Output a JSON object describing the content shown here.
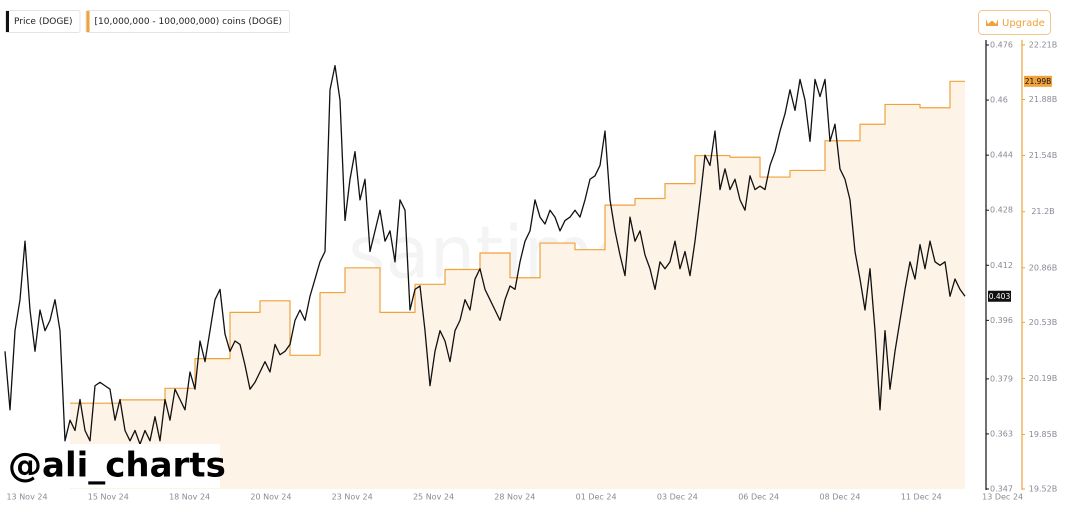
{
  "chart_data": {
    "type": "line",
    "watermark": "santiment",
    "author": "@ali_charts",
    "button": "Upgrade",
    "xticks": [
      "13 Nov 24",
      "15 Nov 24",
      "18 Nov 24",
      "20 Nov 24",
      "23 Nov 24",
      "25 Nov 24",
      "28 Nov 24",
      "01 Dec 24",
      "03 Dec 24",
      "06 Dec 24",
      "08 Dec 24",
      "11 Dec 24",
      "13 Dec 24"
    ],
    "ylim": [
      0.347,
      0.476
    ],
    "yticks": [
      0.476,
      0.46,
      0.444,
      0.428,
      0.412,
      0.396,
      0.379,
      0.363,
      0.347
    ],
    "y2lim": [
      19.52,
      22.21
    ],
    "y2ticks": [
      {
        "value": 22.21,
        "label": "22.21B"
      },
      {
        "value": 21.88,
        "label": "21.88B"
      },
      {
        "value": 21.54,
        "label": "21.54B"
      },
      {
        "value": 21.2,
        "label": "21.2B"
      },
      {
        "value": 20.86,
        "label": "20.86B"
      },
      {
        "value": 20.53,
        "label": "20.53B"
      },
      {
        "value": 20.19,
        "label": "20.19B"
      },
      {
        "value": 19.85,
        "label": "19.85B"
      },
      {
        "value": 19.52,
        "label": "19.52B"
      }
    ],
    "grid": false,
    "series": [
      {
        "name": "Price (DOGE)",
        "color": "#111111",
        "axis": "y",
        "line_style": "straight",
        "fill": false,
        "values": [
          0.387,
          0.37,
          0.393,
          0.402,
          0.419,
          0.399,
          0.387,
          0.399,
          0.393,
          0.396,
          0.402,
          0.393,
          0.361,
          0.367,
          0.364,
          0.373,
          0.364,
          0.361,
          0.377,
          0.378,
          0.377,
          0.376,
          0.367,
          0.373,
          0.364,
          0.361,
          0.364,
          0.36,
          0.364,
          0.361,
          0.368,
          0.361,
          0.373,
          0.367,
          0.376,
          0.373,
          0.37,
          0.381,
          0.376,
          0.39,
          0.384,
          0.393,
          0.402,
          0.405,
          0.392,
          0.387,
          0.39,
          0.389,
          0.383,
          0.376,
          0.378,
          0.381,
          0.384,
          0.381,
          0.389,
          0.386,
          0.387,
          0.389,
          0.396,
          0.399,
          0.396,
          0.403,
          0.408,
          0.413,
          0.416,
          0.463,
          0.47,
          0.46,
          0.425,
          0.437,
          0.445,
          0.431,
          0.437,
          0.416,
          0.422,
          0.428,
          0.419,
          0.422,
          0.413,
          0.431,
          0.428,
          0.399,
          0.405,
          0.406,
          0.393,
          0.377,
          0.387,
          0.393,
          0.39,
          0.384,
          0.393,
          0.396,
          0.402,
          0.399,
          0.408,
          0.411,
          0.405,
          0.402,
          0.399,
          0.396,
          0.402,
          0.406,
          0.405,
          0.413,
          0.419,
          0.422,
          0.431,
          0.426,
          0.424,
          0.428,
          0.426,
          0.422,
          0.425,
          0.426,
          0.428,
          0.426,
          0.431,
          0.437,
          0.438,
          0.441,
          0.451,
          0.431,
          0.422,
          0.415,
          0.409,
          0.426,
          0.419,
          0.422,
          0.415,
          0.411,
          0.405,
          0.413,
          0.411,
          0.413,
          0.419,
          0.411,
          0.416,
          0.409,
          0.419,
          0.431,
          0.444,
          0.441,
          0.451,
          0.434,
          0.44,
          0.434,
          0.437,
          0.431,
          0.428,
          0.438,
          0.434,
          0.435,
          0.434,
          0.441,
          0.445,
          0.451,
          0.456,
          0.463,
          0.457,
          0.466,
          0.46,
          0.448,
          0.466,
          0.461,
          0.466,
          0.448,
          0.453,
          0.44,
          0.437,
          0.431,
          0.416,
          0.408,
          0.399,
          0.411,
          0.393,
          0.37,
          0.393,
          0.376,
          0.387,
          0.396,
          0.405,
          0.413,
          0.408,
          0.418,
          0.411,
          0.419,
          0.413,
          0.412,
          0.413,
          0.403,
          0.408,
          0.405,
          0.403
        ]
      },
      {
        "name": "[10,000,000 - 100,000,000) coins (DOGE)",
        "color": "#f0a23c",
        "axis": "y2",
        "line_style": "step",
        "fill": true,
        "fill_color": "#fdf3e6",
        "values": [
          null,
          null,
          null,
          null,
          null,
          null,
          null,
          null,
          null,
          null,
          null,
          null,
          null,
          20.04,
          20.04,
          20.04,
          20.04,
          20.04,
          20.04,
          20.04,
          20.04,
          20.04,
          20.04,
          20.06,
          20.06,
          20.06,
          20.06,
          20.06,
          20.06,
          20.06,
          20.06,
          20.06,
          20.13,
          20.13,
          20.13,
          20.13,
          20.13,
          20.13,
          20.31,
          20.31,
          20.31,
          20.31,
          20.31,
          20.31,
          20.31,
          20.59,
          20.59,
          20.59,
          20.59,
          20.59,
          20.59,
          20.66,
          20.66,
          20.66,
          20.66,
          20.66,
          20.66,
          20.33,
          20.33,
          20.33,
          20.33,
          20.33,
          20.33,
          20.71,
          20.71,
          20.71,
          20.71,
          20.71,
          20.86,
          20.86,
          20.86,
          20.86,
          20.86,
          20.86,
          20.86,
          20.59,
          20.59,
          20.59,
          20.59,
          20.59,
          20.59,
          20.59,
          20.76,
          20.76,
          20.76,
          20.76,
          20.76,
          20.76,
          20.85,
          20.85,
          20.85,
          20.85,
          20.85,
          20.85,
          20.85,
          20.95,
          20.95,
          20.95,
          20.95,
          20.95,
          20.95,
          20.8,
          20.8,
          20.8,
          20.8,
          20.8,
          20.8,
          21.01,
          21.01,
          21.01,
          21.01,
          21.01,
          21.01,
          21.01,
          20.97,
          20.97,
          20.97,
          20.97,
          20.97,
          20.97,
          21.24,
          21.24,
          21.24,
          21.24,
          21.24,
          21.24,
          21.28,
          21.28,
          21.28,
          21.28,
          21.28,
          21.28,
          21.37,
          21.37,
          21.37,
          21.37,
          21.37,
          21.37,
          21.54,
          21.54,
          21.54,
          21.54,
          21.54,
          21.54,
          21.54,
          21.53,
          21.53,
          21.53,
          21.53,
          21.53,
          21.53,
          21.41,
          21.41,
          21.41,
          21.41,
          21.41,
          21.41,
          21.45,
          21.45,
          21.45,
          21.45,
          21.45,
          21.45,
          21.45,
          21.63,
          21.63,
          21.63,
          21.63,
          21.63,
          21.63,
          21.63,
          21.73,
          21.73,
          21.73,
          21.73,
          21.73,
          21.85,
          21.85,
          21.85,
          21.85,
          21.85,
          21.85,
          21.85,
          21.83,
          21.83,
          21.83,
          21.83,
          21.83,
          21.83,
          21.99,
          21.99,
          21.99,
          21.99
        ],
        "value_labels": [
          null,
          null,
          null,
          null,
          null,
          null,
          null,
          null,
          null,
          null,
          null,
          null,
          null,
          null,
          null,
          null,
          null,
          null,
          null,
          null,
          null,
          null,
          null,
          null,
          null,
          null,
          null,
          null,
          null,
          null,
          null,
          null,
          null,
          null,
          null,
          null,
          null,
          null,
          null,
          null,
          null,
          null,
          null,
          null,
          null,
          null,
          null,
          null,
          null,
          null,
          null,
          null,
          null,
          null,
          null,
          null,
          null,
          null,
          null,
          null,
          null,
          null,
          null,
          null,
          null,
          null,
          null,
          null,
          null,
          null,
          null,
          null,
          null,
          null,
          null,
          null,
          null,
          null,
          null,
          null,
          null,
          null,
          null,
          null,
          null,
          null,
          null,
          null,
          null,
          null,
          null,
          null,
          null,
          null,
          null,
          null,
          null,
          null,
          null,
          null,
          null,
          null,
          null,
          null,
          null,
          null,
          null,
          null,
          null,
          null,
          null,
          null,
          null,
          null,
          null,
          null,
          null,
          null,
          null,
          null,
          null,
          null,
          null,
          null,
          null,
          null,
          null,
          null,
          null,
          null,
          null,
          null,
          null,
          null,
          null,
          null,
          null,
          null,
          null,
          null,
          null,
          null,
          null,
          null,
          null,
          null,
          null,
          null,
          null,
          null,
          null,
          null,
          null,
          null,
          null,
          null,
          null,
          null,
          null,
          null,
          null,
          null,
          null,
          null,
          null,
          null,
          null,
          null,
          null,
          null,
          null,
          null,
          null,
          null,
          null,
          null,
          null,
          null,
          null,
          null,
          null,
          null,
          null,
          null,
          null,
          null,
          null,
          null,
          null,
          null,
          null,
          null,
          "21.99B"
        ]
      }
    ]
  }
}
